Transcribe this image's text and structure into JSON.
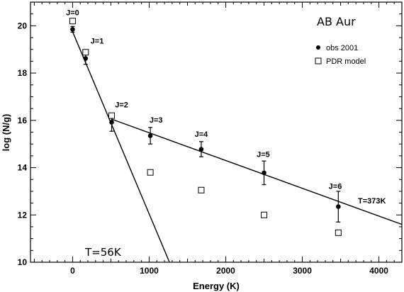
{
  "chart_data": {
    "type": "scatter",
    "title": "AB Aur",
    "xlabel": "Energy (K)",
    "ylabel": "log (N/g)",
    "xlim": [
      -550,
      4300
    ],
    "ylim": [
      10,
      21
    ],
    "x_ticks": [
      0,
      1000,
      2000,
      3000,
      4000
    ],
    "y_ticks": [
      10,
      12,
      14,
      16,
      18,
      20
    ],
    "grid": false,
    "legend_position": "top-right",
    "series": [
      {
        "name": "obs 2001",
        "marker": "filled-circle",
        "points": [
          {
            "x": 0,
            "y": 19.85,
            "yerr": 0.12
          },
          {
            "x": 170,
            "y": 18.62,
            "yerr": 0.25
          },
          {
            "x": 510,
            "y": 15.92,
            "yerr": 0.38
          },
          {
            "x": 1015,
            "y": 15.35,
            "yerr": 0.35
          },
          {
            "x": 1680,
            "y": 14.78,
            "yerr": 0.32
          },
          {
            "x": 2500,
            "y": 13.78,
            "yerr": 0.5
          },
          {
            "x": 3470,
            "y": 12.35,
            "yerr": 0.65
          }
        ]
      },
      {
        "name": "PDR model",
        "marker": "open-square",
        "points": [
          {
            "x": 0,
            "y": 20.2
          },
          {
            "x": 170,
            "y": 18.88
          },
          {
            "x": 510,
            "y": 16.2
          },
          {
            "x": 1015,
            "y": 13.8
          },
          {
            "x": 1680,
            "y": 13.05
          },
          {
            "x": 2500,
            "y": 12.0
          },
          {
            "x": 3470,
            "y": 11.25
          }
        ]
      }
    ],
    "fit_lines": [
      {
        "label": "T=56K",
        "x": [
          0,
          1265
        ],
        "y": [
          19.75,
          10.0
        ]
      },
      {
        "label": "T=373K",
        "x": [
          510,
          4300
        ],
        "y": [
          16.05,
          11.6
        ]
      }
    ],
    "annotations": [
      {
        "text": "J=0",
        "x": 0,
        "y": 20.45
      },
      {
        "text": "J=1",
        "x": 320,
        "y": 19.25
      },
      {
        "text": "J=2",
        "x": 640,
        "y": 16.55
      },
      {
        "text": "J=3",
        "x": 1090,
        "y": 15.9
      },
      {
        "text": "J=4",
        "x": 1680,
        "y": 15.3
      },
      {
        "text": "J=5",
        "x": 2490,
        "y": 14.45
      },
      {
        "text": "J=6",
        "x": 3430,
        "y": 13.1
      }
    ]
  }
}
